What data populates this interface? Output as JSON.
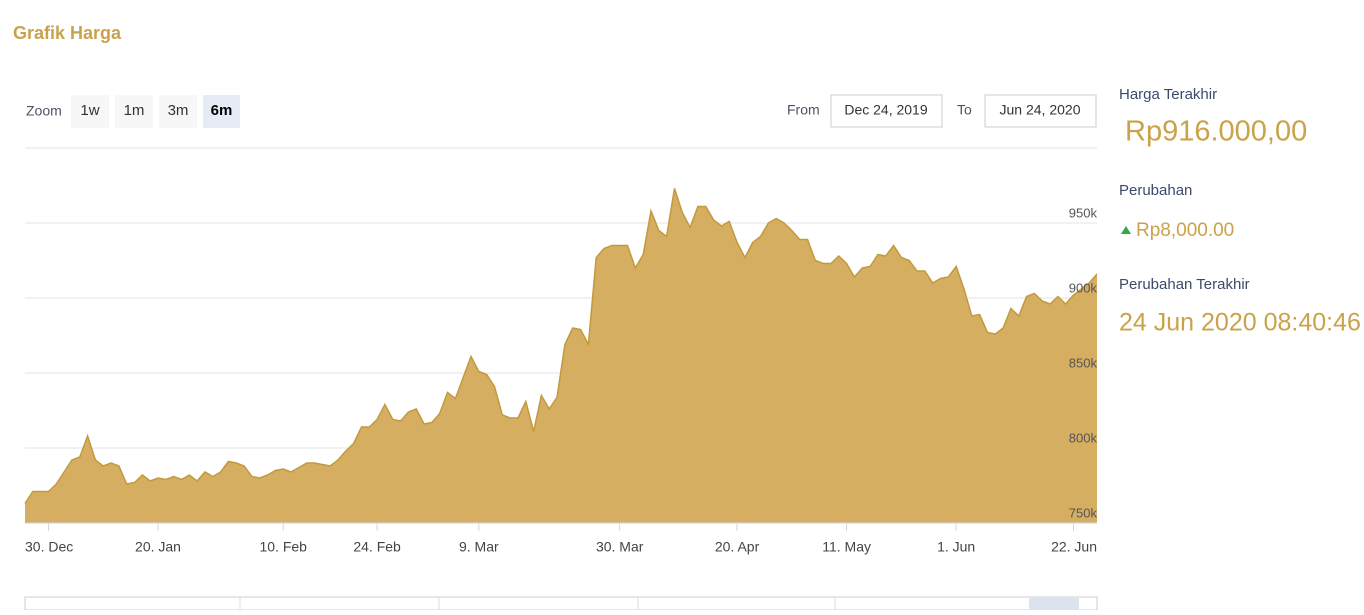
{
  "header": {
    "title": "Grafik Harga"
  },
  "zoom": {
    "label": "Zoom",
    "buttons": [
      "1w",
      "1m",
      "3m",
      "6m"
    ],
    "active": 3
  },
  "range": {
    "from_label": "From",
    "from": "Dec 24, 2019",
    "to_label": "To",
    "to": "Jun 24, 2020"
  },
  "sidebar": {
    "last_price_label": "Harga Terakhir",
    "last_price": "Rp916.000,00",
    "change_label": "Perubahan",
    "change": "Rp8,000.00",
    "last_change_label": "Perubahan Terakhir",
    "last_change": "24 Jun 2020 08:40:46"
  },
  "chart_data": {
    "type": "area",
    "color": "#d4aa58",
    "categories": [
      null,
      null,
      null,
      "30. Dec",
      null,
      null,
      null,
      null,
      null,
      null,
      null,
      null,
      null,
      null,
      null,
      null,
      null,
      "20. Jan",
      null,
      null,
      null,
      null,
      null,
      null,
      null,
      null,
      null,
      null,
      null,
      null,
      null,
      null,
      null,
      "10. Feb",
      null,
      null,
      null,
      null,
      null,
      null,
      null,
      null,
      null,
      null,
      null,
      "24. Feb",
      null,
      null,
      null,
      null,
      null,
      null,
      null,
      null,
      null,
      null,
      null,
      null,
      "9. Mar",
      null,
      null,
      null,
      null,
      null,
      null,
      null,
      null,
      null,
      null,
      null,
      null,
      null,
      null,
      null,
      null,
      null,
      "30. Mar",
      null,
      null,
      null,
      null,
      null,
      null,
      null,
      null,
      null,
      null,
      null,
      null,
      null,
      null,
      "20. Apr",
      null,
      null,
      null,
      null,
      null,
      null,
      null,
      null,
      null,
      null,
      null,
      null,
      null,
      "11. May",
      null,
      null,
      null,
      null,
      null,
      null,
      null,
      null,
      null,
      null,
      null,
      null,
      null,
      "1. Jun",
      null,
      null,
      null,
      null,
      null,
      null,
      null,
      null,
      null,
      null,
      null,
      null,
      null,
      null,
      "22. Jun",
      null,
      null,
      null
    ],
    "values": [
      763000,
      771000,
      771000,
      771000,
      776000,
      784000,
      792000,
      794000,
      808000,
      792000,
      788000,
      790000,
      788000,
      776000,
      777000,
      782000,
      778000,
      780000,
      779000,
      781000,
      779000,
      782000,
      778000,
      784000,
      781000,
      784000,
      791000,
      790000,
      788000,
      781000,
      780000,
      782000,
      785000,
      786000,
      784000,
      787000,
      790000,
      790000,
      789000,
      788000,
      792000,
      798000,
      803000,
      814000,
      814000,
      819000,
      829000,
      819000,
      818000,
      824000,
      826000,
      816000,
      817000,
      823000,
      837000,
      833000,
      847000,
      861000,
      851000,
      849000,
      841000,
      822000,
      820000,
      820000,
      831000,
      811000,
      835000,
      826000,
      834000,
      869000,
      880000,
      879000,
      869000,
      927000,
      933000,
      935000,
      935000,
      935000,
      920000,
      929000,
      958000,
      945000,
      941000,
      973000,
      957000,
      947000,
      961000,
      961000,
      952000,
      948000,
      951000,
      937000,
      927000,
      937000,
      941000,
      950000,
      953000,
      950000,
      945000,
      939000,
      939000,
      925000,
      923000,
      923000,
      928000,
      923000,
      914000,
      920000,
      921000,
      929000,
      928000,
      935000,
      927000,
      925000,
      918000,
      918000,
      910000,
      913000,
      914000,
      921000,
      906000,
      888000,
      889000,
      877000,
      876000,
      880000,
      893000,
      888000,
      901000,
      903000,
      898000,
      896000,
      901000,
      896000,
      902000,
      906000,
      910000,
      916000
    ],
    "ylim": [
      750000,
      1000000
    ],
    "yticks": [
      {
        "value": 750000,
        "label": "750k"
      },
      {
        "value": 800000,
        "label": "800k"
      },
      {
        "value": 850000,
        "label": "850k"
      },
      {
        "value": 900000,
        "label": "900k"
      },
      {
        "value": 950000,
        "label": "950k"
      }
    ],
    "grid": true
  }
}
